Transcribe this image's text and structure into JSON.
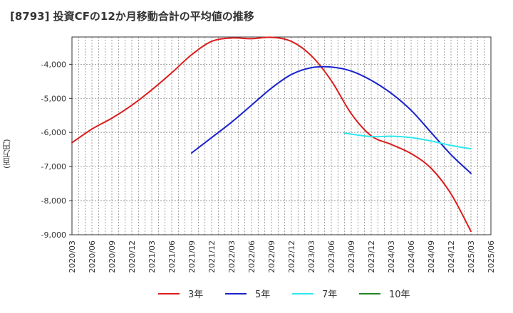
{
  "chart_data": {
    "type": "line",
    "title": "[8793]  投資CFの12か月移動合計の平均値の推移",
    "ylabel": "(百万円)",
    "xlabel": "",
    "x_ticks": [
      "2020/03",
      "2020/06",
      "2020/09",
      "2020/12",
      "2021/03",
      "2021/06",
      "2021/09",
      "2021/12",
      "2022/03",
      "2022/06",
      "2022/09",
      "2022/12",
      "2023/03",
      "2023/06",
      "2023/09",
      "2023/12",
      "2024/03",
      "2024/06",
      "2024/09",
      "2024/12",
      "2025/03",
      "2025/06"
    ],
    "y_ticks": [
      "-4,000",
      "-5,000",
      "-6,000",
      "-7,000",
      "-8,000",
      "-9,000"
    ],
    "ylim": [
      -9000,
      -3200
    ],
    "grid": true,
    "legend_position": "bottom",
    "series": [
      {
        "name": "3年",
        "color": "#dd1c1c",
        "points": [
          [
            "2020/03",
            -6300
          ],
          [
            "2020/06",
            -5900
          ],
          [
            "2020/09",
            -5580
          ],
          [
            "2020/12",
            -5200
          ],
          [
            "2021/03",
            -4750
          ],
          [
            "2021/06",
            -4250
          ],
          [
            "2021/09",
            -3720
          ],
          [
            "2021/12",
            -3330
          ],
          [
            "2022/03",
            -3230
          ],
          [
            "2022/06",
            -3250
          ],
          [
            "2022/09",
            -3210
          ],
          [
            "2022/12",
            -3330
          ],
          [
            "2023/03",
            -3750
          ],
          [
            "2023/06",
            -4480
          ],
          [
            "2023/09",
            -5450
          ],
          [
            "2023/12",
            -6100
          ],
          [
            "2024/03",
            -6350
          ],
          [
            "2024/06",
            -6620
          ],
          [
            "2024/09",
            -7050
          ],
          [
            "2024/12",
            -7800
          ],
          [
            "2025/03",
            -8900
          ]
        ]
      },
      {
        "name": "5年",
        "color": "#1a22cc",
        "points": [
          [
            "2021/09",
            -6600
          ],
          [
            "2021/12",
            -6150
          ],
          [
            "2022/03",
            -5700
          ],
          [
            "2022/06",
            -5200
          ],
          [
            "2022/09",
            -4700
          ],
          [
            "2022/12",
            -4300
          ],
          [
            "2023/03",
            -4100
          ],
          [
            "2023/06",
            -4080
          ],
          [
            "2023/09",
            -4200
          ],
          [
            "2023/12",
            -4470
          ],
          [
            "2024/03",
            -4850
          ],
          [
            "2024/06",
            -5350
          ],
          [
            "2024/09",
            -6000
          ],
          [
            "2024/12",
            -6650
          ],
          [
            "2025/03",
            -7200
          ]
        ]
      },
      {
        "name": "7年",
        "color": "#2ee8ee",
        "points": [
          [
            "2023/08",
            -6020
          ],
          [
            "2023/12",
            -6120
          ],
          [
            "2024/03",
            -6110
          ],
          [
            "2024/06",
            -6150
          ],
          [
            "2024/09",
            -6250
          ],
          [
            "2024/12",
            -6380
          ],
          [
            "2025/03",
            -6480
          ]
        ]
      },
      {
        "name": "10年",
        "color": "#228822",
        "points": []
      }
    ]
  }
}
